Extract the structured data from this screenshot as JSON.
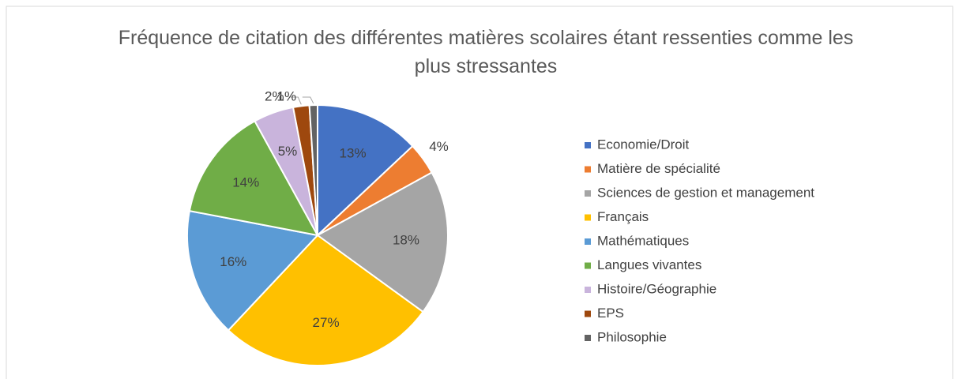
{
  "chart_data": {
    "type": "pie",
    "title": "Fréquence de citation des différentes matières scolaires étant ressenties comme les plus stressantes",
    "categories": [
      "Economie/Droit",
      "Matière de spécialité",
      "Sciences de gestion et management",
      "Français",
      "Mathématiques",
      "Langues vivantes",
      "Histoire/Géographie",
      "EPS",
      "Philosophie"
    ],
    "values": [
      13,
      4,
      18,
      27,
      16,
      14,
      5,
      2,
      1
    ],
    "value_labels": [
      "13%",
      "4%",
      "18%",
      "27%",
      "16%",
      "14%",
      "5%",
      "2%",
      "1%"
    ],
    "colors": [
      "#4472c4",
      "#ed7d31",
      "#a5a5a5",
      "#ffc000",
      "#5b9bd5",
      "#70ad47",
      "#c9b4dc",
      "#9e480e",
      "#636363"
    ],
    "legend": "right"
  }
}
